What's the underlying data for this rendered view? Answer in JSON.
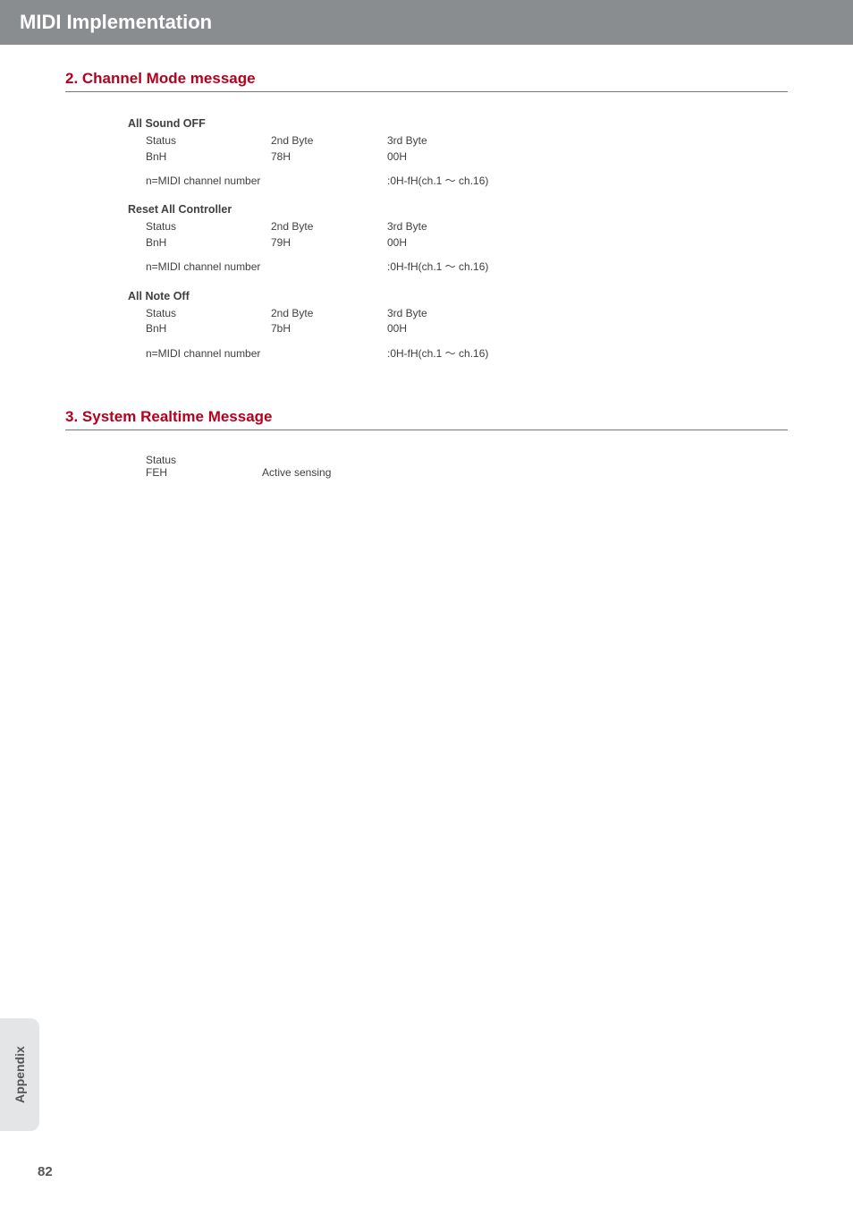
{
  "header": {
    "title": "MIDI Implementation"
  },
  "sections": {
    "channel_mode": {
      "heading": "2. Channel Mode message",
      "groups": {
        "all_sound_off": {
          "title": "All Sound OFF",
          "headers": {
            "status": "Status",
            "byte2": "2nd Byte",
            "byte3": "3rd Byte"
          },
          "values": {
            "status": "BnH",
            "byte2": "78H",
            "byte3": "00H"
          },
          "note_left": "n=MIDI channel number",
          "note_right": ":0H-fH(ch.1 ～ ch.16)"
        },
        "reset_all": {
          "title": "Reset All Controller",
          "headers": {
            "status": "Status",
            "byte2": "2nd Byte",
            "byte3": "3rd Byte"
          },
          "values": {
            "status": "BnH",
            "byte2": "79H",
            "byte3": "00H"
          },
          "note_left": "n=MIDI channel number",
          "note_right": ":0H-fH(ch.1 ～ ch.16)"
        },
        "all_note_off": {
          "title": "All Note Off",
          "headers": {
            "status": "Status",
            "byte2": "2nd Byte",
            "byte3": "3rd Byte"
          },
          "values": {
            "status": "BnH",
            "byte2": "7bH",
            "byte3": "00H"
          },
          "note_left": "n=MIDI channel number",
          "note_right": ":0H-fH(ch.1 ～ ch.16)"
        }
      }
    },
    "system_realtime": {
      "heading": "3. System Realtime Message",
      "status_label": "Status",
      "status_val": "FEH",
      "status_desc": "Active sensing"
    }
  },
  "side_tab": {
    "label": "Appendix"
  },
  "page_number": "82"
}
